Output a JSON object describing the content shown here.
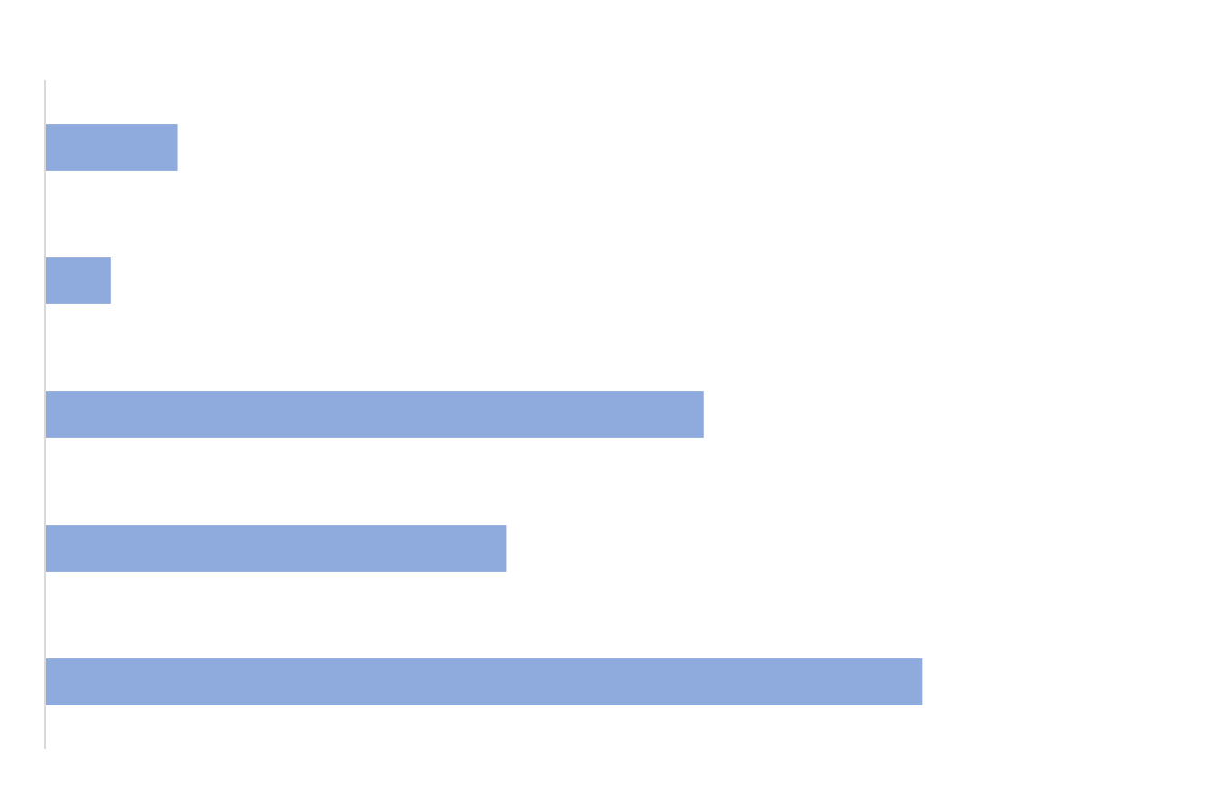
{
  "chart_data": {
    "type": "bar",
    "orientation": "horizontal",
    "categories": [
      "",
      "",
      "",
      "",
      ""
    ],
    "values": [
      1.5,
      0.74,
      7.5,
      5.25,
      10
    ],
    "xlim": [
      0,
      12.13
    ],
    "title": "",
    "xlabel": "",
    "ylabel": "",
    "grid": false,
    "legend": "none",
    "colors": {
      "bar": "#8faadc",
      "axis": "#d9d9d9",
      "background": "#ffffff"
    }
  }
}
